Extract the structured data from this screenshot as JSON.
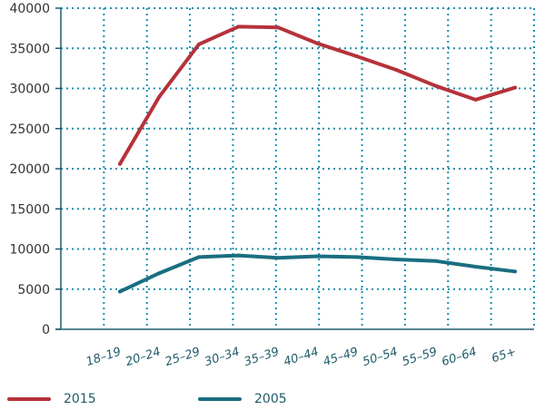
{
  "chart_data": {
    "type": "line",
    "categories": [
      "18–19",
      "20–24",
      "25–29",
      "30–34",
      "35–39",
      "40–44",
      "45–49",
      "50–54",
      "55–59",
      "60–64",
      "65+"
    ],
    "series": [
      {
        "name": "2015",
        "color": "#b5323a",
        "values": [
          20600,
          29000,
          35500,
          37700,
          37600,
          35600,
          34000,
          32300,
          30300,
          28600,
          30100
        ]
      },
      {
        "name": "2005",
        "color": "#1a6e80",
        "values": [
          4700,
          7000,
          9000,
          9200,
          8900,
          9100,
          9000,
          8700,
          8500,
          7800,
          7200
        ]
      }
    ],
    "ylim": [
      0,
      40000
    ],
    "yticks": [
      "0",
      "5000",
      "10000",
      "15000",
      "20000",
      "25000",
      "30000",
      "35000",
      "40000"
    ],
    "grid": true,
    "grid_color": "#1a8faf",
    "axis_color": "#1f5a6a",
    "legend_position": "bottom",
    "title": "",
    "xlabel": "",
    "ylabel": ""
  }
}
